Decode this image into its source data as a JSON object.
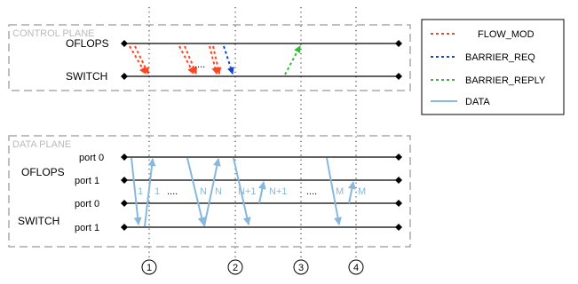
{
  "control_plane": {
    "title": "CONTROL PLANE",
    "row_labels": [
      "OFLOPS",
      "SWITCH"
    ],
    "dots": "...."
  },
  "data_plane": {
    "title": "DATA PLANE",
    "group_labels": [
      "OFLOPS",
      "SWITCH"
    ],
    "port_labels": [
      "port 0",
      "port 1",
      "port 0",
      "port 1"
    ],
    "packet_labels": [
      "1",
      "1",
      "N",
      "N",
      "N+1",
      "N+1",
      "M",
      "M"
    ],
    "dots": [
      "....",
      "...."
    ]
  },
  "legend": {
    "items": [
      {
        "label": "FLOW_MOD",
        "color": "#ff4422",
        "style": "dotted"
      },
      {
        "label": "BARRIER_REQ",
        "color": "#1144dd",
        "style": "dotted"
      },
      {
        "label": "BARRIER_REPLY",
        "color": "#33bb33",
        "style": "dotted"
      },
      {
        "label": "DATA",
        "color": "#88b8dd",
        "style": "solid"
      }
    ]
  },
  "markers": [
    "1",
    "2",
    "3",
    "4"
  ],
  "colors": {
    "flow_mod": "#ff4422",
    "barrier_req": "#1144dd",
    "barrier_reply": "#33bb33",
    "data": "#88b8dd",
    "box_border": "#aaaaaa",
    "plane_title": "#bbbbbb"
  }
}
